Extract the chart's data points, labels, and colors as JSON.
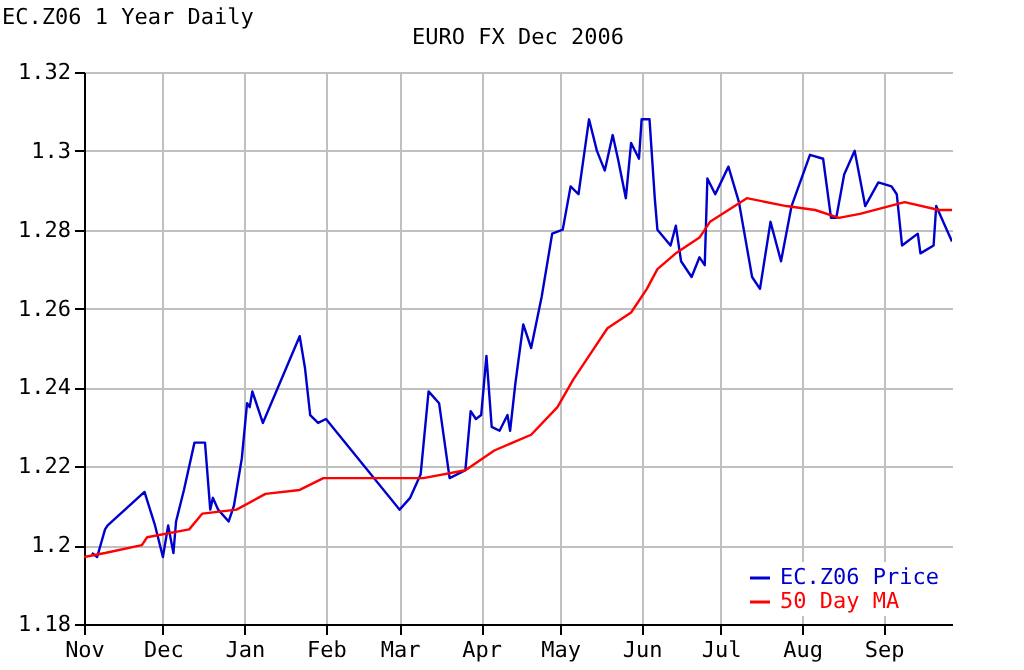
{
  "chart_data": {
    "type": "line",
    "title": "EURO FX Dec 2006",
    "annotations": [
      "EC.Z06 1 Year Daily"
    ],
    "xlim": [
      "2005-11-01",
      "2006-09-27"
    ],
    "xticks": [
      {
        "value": "2005-11-01",
        "label": "Nov"
      },
      {
        "value": "2005-12-01",
        "label": "Dec"
      },
      {
        "value": "2006-01-01",
        "label": "Jan"
      },
      {
        "value": "2006-02-01",
        "label": "Feb"
      },
      {
        "value": "2006-03-01",
        "label": "Mar"
      },
      {
        "value": "2006-04-01",
        "label": "Apr"
      },
      {
        "value": "2006-05-01",
        "label": "May"
      },
      {
        "value": "2006-06-01",
        "label": "Jun"
      },
      {
        "value": "2006-07-01",
        "label": "Jul"
      },
      {
        "value": "2006-08-01",
        "label": "Aug"
      },
      {
        "value": "2006-09-01",
        "label": "Sep"
      }
    ],
    "ylim": [
      1.18,
      1.32
    ],
    "yticks": [
      1.18,
      1.2,
      1.22,
      1.24,
      1.26,
      1.28,
      1.3,
      1.32
    ],
    "grid": true,
    "legend": "bottom right",
    "series": [
      {
        "name": "EC.Z06 Price",
        "color": "#0000cc",
        "x": [
          "2005-11-04",
          "2005-11-06",
          "2005-11-09",
          "2005-11-10",
          "2005-11-24",
          "2005-11-28",
          "2005-12-01",
          "2005-12-03",
          "2005-12-05",
          "2005-12-06",
          "2005-12-09",
          "2005-12-13",
          "2005-12-17",
          "2005-12-19",
          "2005-12-20",
          "2005-12-22",
          "2005-12-26",
          "2005-12-28",
          "2005-12-31",
          "2006-01-02",
          "2006-01-03",
          "2006-01-04",
          "2006-01-08",
          "2006-01-22",
          "2006-01-24",
          "2006-01-26",
          "2006-01-29",
          "2006-02-01",
          "2006-03-01",
          "2006-03-05",
          "2006-03-09",
          "2006-03-12",
          "2006-03-16",
          "2006-03-20",
          "2006-03-26",
          "2006-03-28",
          "2006-03-30",
          "2006-04-01",
          "2006-04-03",
          "2006-04-05",
          "2006-04-08",
          "2006-04-11",
          "2006-04-12",
          "2006-04-14",
          "2006-04-17",
          "2006-04-20",
          "2006-04-24",
          "2006-04-28",
          "2006-05-02",
          "2006-05-05",
          "2006-05-08",
          "2006-05-12",
          "2006-05-15",
          "2006-05-18",
          "2006-05-21",
          "2006-05-23",
          "2006-05-26",
          "2006-05-28",
          "2006-05-31",
          "2006-06-01",
          "2006-06-04",
          "2006-06-06",
          "2006-06-07",
          "2006-06-12",
          "2006-06-14",
          "2006-06-16",
          "2006-06-20",
          "2006-06-23",
          "2006-06-25",
          "2006-06-26",
          "2006-06-29",
          "2006-07-04",
          "2006-07-08",
          "2006-07-13",
          "2006-07-16",
          "2006-07-20",
          "2006-07-24",
          "2006-07-28",
          "2006-08-04",
          "2006-08-09",
          "2006-08-12",
          "2006-08-14",
          "2006-08-17",
          "2006-08-21",
          "2006-08-25",
          "2006-08-30",
          "2006-09-04",
          "2006-09-06",
          "2006-09-08",
          "2006-09-14",
          "2006-09-15",
          "2006-09-20",
          "2006-09-21",
          "2006-09-25",
          "2006-09-27"
        ],
        "values": [
          1.198,
          1.197,
          1.204,
          1.205,
          1.2135,
          1.205,
          1.197,
          1.205,
          1.198,
          1.206,
          1.214,
          1.226,
          1.226,
          1.209,
          1.212,
          1.209,
          1.206,
          1.21,
          1.222,
          1.236,
          1.235,
          1.239,
          1.231,
          1.253,
          1.245,
          1.233,
          1.231,
          1.232,
          1.209,
          1.212,
          1.218,
          1.239,
          1.236,
          1.217,
          1.219,
          1.234,
          1.232,
          1.233,
          1.248,
          1.23,
          1.229,
          1.233,
          1.229,
          1.241,
          1.256,
          1.25,
          1.263,
          1.279,
          1.28,
          1.291,
          1.289,
          1.308,
          1.3,
          1.295,
          1.304,
          1.298,
          1.288,
          1.302,
          1.298,
          1.308,
          1.308,
          1.288,
          1.28,
          1.276,
          1.281,
          1.272,
          1.268,
          1.273,
          1.271,
          1.293,
          1.289,
          1.296,
          1.287,
          1.268,
          1.265,
          1.282,
          1.272,
          1.286,
          1.299,
          1.298,
          1.283,
          1.283,
          1.294,
          1.3,
          1.286,
          1.292,
          1.291,
          1.289,
          1.276,
          1.279,
          1.274,
          1.276,
          1.286,
          1.28,
          1.277
        ]
      },
      {
        "name": "50 Day MA",
        "color": "#ff0000",
        "x": [
          "2005-11-01",
          "2005-11-09",
          "2005-11-23",
          "2005-11-25",
          "2005-12-11",
          "2005-12-16",
          "2005-12-29",
          "2006-01-09",
          "2006-01-22",
          "2006-01-31",
          "2006-02-15",
          "2006-03-10",
          "2006-03-26",
          "2006-04-06",
          "2006-04-20",
          "2006-04-30",
          "2006-05-06",
          "2006-05-12",
          "2006-05-19",
          "2006-05-28",
          "2006-06-03",
          "2006-06-07",
          "2006-06-14",
          "2006-06-23",
          "2006-06-27",
          "2006-07-11",
          "2006-07-26",
          "2006-08-06",
          "2006-08-15",
          "2006-08-23",
          "2006-09-09",
          "2006-09-22",
          "2006-09-27"
        ],
        "values": [
          1.197,
          1.198,
          1.2,
          1.202,
          1.204,
          1.208,
          1.209,
          1.213,
          1.214,
          1.217,
          1.217,
          1.217,
          1.219,
          1.224,
          1.228,
          1.235,
          1.242,
          1.248,
          1.255,
          1.259,
          1.265,
          1.27,
          1.274,
          1.278,
          1.282,
          1.288,
          1.286,
          1.285,
          1.283,
          1.284,
          1.287,
          1.285,
          1.285
        ]
      }
    ]
  }
}
